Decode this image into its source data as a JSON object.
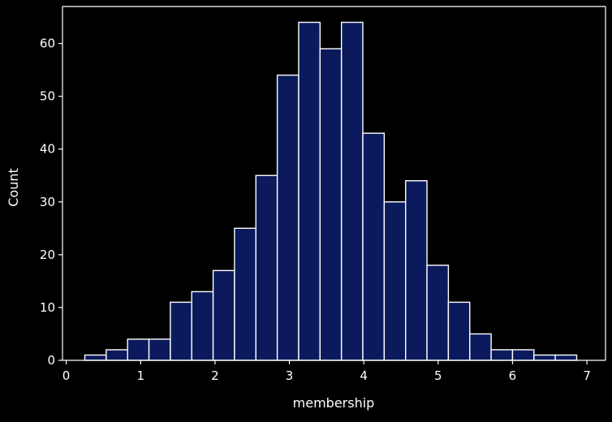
{
  "chart_data": {
    "type": "bar",
    "subtype": "histogram",
    "title": "",
    "xlabel": "membership",
    "ylabel": "Count",
    "xlim": [
      -0.05,
      7.25
    ],
    "ylim": [
      0,
      67
    ],
    "x_ticks": [
      0,
      1,
      2,
      3,
      4,
      5,
      6,
      7
    ],
    "y_ticks": [
      0,
      10,
      20,
      30,
      40,
      50,
      60
    ],
    "grid": false,
    "bin_start": 0.25,
    "bin_width": 0.2875,
    "values": [
      1,
      2,
      4,
      4,
      11,
      13,
      17,
      25,
      35,
      54,
      64,
      59,
      64,
      43,
      30,
      34,
      18,
      11,
      5,
      2,
      2,
      1,
      1
    ],
    "colors": {
      "background": "#000000",
      "bar_fill": "#0a1a5c",
      "bar_edge": "#ffffff",
      "axis": "#ffffff",
      "text": "#ffffff"
    }
  }
}
